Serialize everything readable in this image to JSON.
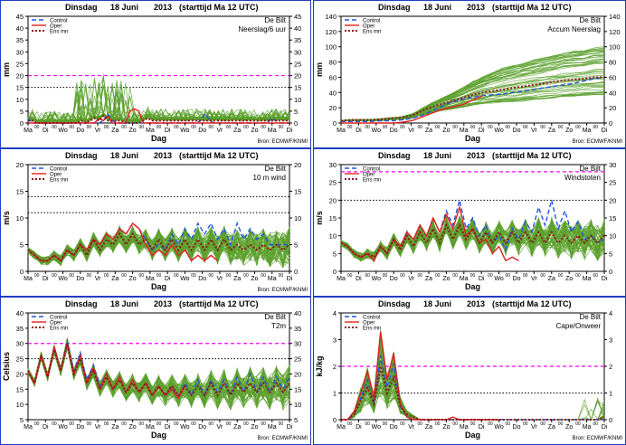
{
  "colors": {
    "panel_border": "#1f3fbf",
    "control": "#2255dd",
    "oper": "#e02020",
    "ensmean": "#8b1a1a",
    "members": "#5aa02c",
    "threshold": "#ff00ff",
    "dotted_grid": "#000000",
    "source": "#0000cc"
  },
  "shared": {
    "header_day": "Dinsdag",
    "header_date": "18 Juni",
    "header_year": "2013",
    "header_run": "(starttijd  Ma 12 UTC)",
    "station": "De Bilt",
    "xlabel": "Dag",
    "legend_control": "Control",
    "legend_oper": "Oper",
    "legend_ensmean": "Ens mn",
    "source": "Bron: ECMWF/KNMI",
    "hour_marks": [
      "00",
      "00",
      "00",
      "00",
      "00",
      "00",
      "00",
      "00",
      "00",
      "00",
      "00",
      "00",
      "00",
      "00",
      "00"
    ],
    "day_labels": [
      "Ma",
      "Di",
      "Wo",
      "Do",
      "Vr",
      "Za",
      "Zo",
      "Ma",
      "Di",
      "Wo",
      "Do",
      "Vr",
      "Za",
      "Zo",
      "Ma",
      "Di"
    ]
  },
  "chart_data": [
    {
      "type": "line",
      "ylabel": "mm",
      "variable": "Neerslag/6 uur",
      "ylim": [
        0,
        45
      ],
      "yticks": [
        0,
        5,
        10,
        15,
        20,
        25,
        30,
        35,
        40,
        45
      ],
      "threshold": 20,
      "ref_line": 15,
      "legend": "left",
      "source_shown": true,
      "series": [
        {
          "name": "Control",
          "values": [
            2,
            0,
            0,
            0,
            0,
            0,
            0,
            0,
            0,
            0,
            0,
            0,
            0,
            0,
            0,
            0,
            0,
            1,
            4,
            1,
            0,
            0,
            0,
            0,
            0,
            0,
            0,
            0,
            0,
            0,
            0,
            0,
            0,
            0,
            0,
            0,
            0,
            0,
            0,
            1,
            4,
            1,
            0,
            0,
            0,
            0,
            0,
            0,
            0,
            0,
            0,
            0,
            0,
            0,
            0,
            2,
            1,
            0,
            0,
            0
          ]
        },
        {
          "name": "Oper",
          "values": [
            0,
            0,
            0,
            0,
            0,
            0,
            0,
            0,
            0,
            0,
            0,
            0,
            0,
            0,
            0,
            0,
            2,
            1,
            3,
            0,
            0,
            0,
            0,
            5,
            6,
            5,
            0,
            0,
            0,
            0,
            0,
            0,
            0,
            0,
            0,
            0,
            0,
            0,
            0,
            0,
            0,
            0,
            0,
            0,
            0,
            0,
            0,
            0,
            0,
            0,
            0,
            0,
            0,
            0,
            0,
            0,
            0,
            0,
            0,
            0
          ]
        },
        {
          "name": "Ens mn",
          "values": [
            1,
            1,
            0,
            0,
            0,
            0,
            0,
            0,
            0,
            0,
            0,
            0,
            1,
            0,
            1,
            2,
            1,
            3,
            1,
            1,
            1,
            1,
            0,
            0,
            0,
            0,
            1,
            2,
            1,
            1,
            1,
            1,
            1,
            1,
            1,
            1,
            1,
            1,
            1,
            1,
            1,
            1,
            1,
            1,
            1,
            1,
            1,
            1,
            1,
            1,
            1,
            1,
            1,
            1,
            1,
            1,
            1,
            1,
            1,
            1
          ]
        }
      ]
    },
    {
      "type": "line",
      "ylabel": "mm",
      "variable": "Accum Neerslag",
      "ylim": [
        0,
        140
      ],
      "yticks": [
        0,
        20,
        40,
        60,
        80,
        100,
        120,
        140
      ],
      "threshold": null,
      "ref_line": null,
      "legend": "left",
      "source_shown": true,
      "series": [
        {
          "name": "Control",
          "values": [
            2,
            2,
            2,
            2,
            3,
            3,
            4,
            6,
            10,
            16,
            22,
            28,
            31,
            34,
            36,
            37,
            38,
            40,
            42,
            44,
            46,
            48,
            50,
            52,
            55,
            58,
            60
          ]
        },
        {
          "name": "Oper",
          "values": [
            0,
            0,
            0,
            0,
            0,
            0,
            1,
            3,
            8,
            13,
            18,
            21,
            24,
            30,
            36
          ]
        },
        {
          "name": "Ens mn",
          "values": [
            3,
            4,
            4,
            4,
            5,
            6,
            7,
            10,
            16,
            21,
            25,
            29,
            33,
            37,
            40,
            42,
            44,
            46,
            48,
            50,
            52,
            54,
            56,
            57,
            58,
            60,
            60
          ]
        }
      ]
    },
    {
      "type": "line",
      "ylabel": "m/s",
      "variable": "10 m wind",
      "ylim": [
        0,
        20
      ],
      "yticks": [
        0,
        5,
        10,
        15,
        20
      ],
      "threshold": null,
      "ref_line": 11,
      "ref_line2": 14,
      "legend": "left",
      "source_shown": true,
      "series": [
        {
          "name": "Control",
          "values": [
            4,
            3,
            2,
            2,
            3,
            2,
            4,
            3,
            5,
            4,
            6,
            5,
            7,
            6,
            8,
            7,
            9,
            8,
            6,
            4,
            5,
            4,
            7,
            5,
            8,
            6,
            9,
            7,
            9,
            6,
            8,
            5,
            9,
            6,
            8,
            6,
            7,
            5,
            5,
            5,
            5
          ]
        },
        {
          "name": "Oper",
          "values": [
            4,
            3,
            2,
            2,
            3,
            2,
            4,
            3,
            5,
            4,
            6,
            5,
            7,
            6,
            8,
            7,
            9,
            8,
            5,
            3,
            4,
            3,
            5,
            3,
            4,
            2,
            3,
            2,
            3,
            2
          ]
        },
        {
          "name": "Ens mn",
          "values": [
            4,
            3,
            2,
            2,
            3,
            2,
            4,
            3,
            5,
            3,
            6,
            4,
            6,
            5,
            7,
            5,
            7,
            5,
            6,
            4,
            6,
            4,
            6,
            4,
            6,
            4,
            6,
            4,
            6,
            4,
            6,
            4,
            5,
            4,
            5,
            4,
            5,
            4,
            5,
            4,
            5
          ]
        }
      ]
    },
    {
      "type": "line",
      "ylabel": "m/s",
      "variable": "Windstoten",
      "ylim": [
        0,
        30
      ],
      "yticks": [
        0,
        5,
        10,
        15,
        20,
        25,
        30
      ],
      "threshold": 28,
      "ref_line": 20,
      "legend": "left",
      "source_shown": false,
      "series": [
        {
          "name": "Control",
          "values": [
            8,
            7,
            5,
            4,
            5,
            3,
            7,
            5,
            9,
            7,
            11,
            9,
            13,
            10,
            15,
            11,
            17,
            13,
            20,
            12,
            15,
            10,
            13,
            8,
            10,
            6,
            12,
            9,
            14,
            11,
            18,
            13,
            20,
            12,
            17,
            11,
            14,
            9,
            10,
            8,
            9
          ]
        },
        {
          "name": "Oper",
          "values": [
            8,
            7,
            5,
            4,
            5,
            3,
            7,
            5,
            9,
            7,
            11,
            9,
            13,
            10,
            15,
            11,
            16,
            12,
            18,
            10,
            12,
            8,
            9,
            5,
            7,
            3,
            4,
            3
          ]
        },
        {
          "name": "Ens mn",
          "values": [
            8,
            7,
            5,
            4,
            5,
            4,
            7,
            5,
            9,
            6,
            10,
            7,
            11,
            8,
            12,
            8,
            13,
            9,
            13,
            9,
            12,
            8,
            11,
            8,
            11,
            8,
            11,
            8,
            11,
            8,
            11,
            8,
            11,
            8,
            10,
            8,
            10,
            8,
            10,
            8,
            10
          ]
        }
      ]
    },
    {
      "type": "line",
      "ylabel": "Celsius",
      "variable": "T2m",
      "ylim": [
        5,
        40
      ],
      "yticks": [
        5,
        10,
        15,
        20,
        25,
        30,
        35,
        40
      ],
      "threshold": 30,
      "ref_line": 25,
      "legend": "left",
      "source_shown": true,
      "series": [
        {
          "name": "Control",
          "values": [
            21,
            17,
            26,
            19,
            29,
            21,
            31,
            21,
            27,
            18,
            23,
            16,
            20,
            15,
            19,
            14,
            18,
            14,
            17,
            13,
            16,
            13,
            16,
            12,
            17,
            13,
            18,
            13,
            18,
            14,
            18,
            13,
            19,
            14,
            20,
            14,
            19,
            14,
            19,
            15,
            19
          ]
        },
        {
          "name": "Oper",
          "values": [
            21,
            17,
            26,
            19,
            29,
            21,
            30,
            20,
            26,
            17,
            22,
            15,
            20,
            15,
            19,
            14,
            18,
            14,
            17,
            13,
            16,
            13,
            15,
            12,
            16
          ]
        },
        {
          "name": "Ens mn",
          "values": [
            21,
            17,
            26,
            19,
            28,
            21,
            30,
            20,
            25,
            17,
            21,
            15,
            19,
            15,
            18,
            14,
            17,
            14,
            17,
            13,
            16,
            13,
            16,
            13,
            16,
            13,
            16,
            13,
            17,
            13,
            17,
            13,
            17,
            14,
            17,
            14,
            17,
            14,
            17,
            14,
            17
          ]
        }
      ]
    },
    {
      "type": "line",
      "ylabel": "kJ/kg",
      "variable": "Cape/Onweer",
      "ylim": [
        0,
        4
      ],
      "yticks": [
        0,
        1,
        2,
        3,
        4
      ],
      "threshold": 2,
      "ref_line": 1,
      "legend": "left",
      "source_shown": true,
      "series": [
        {
          "name": "Control",
          "values": [
            0,
            0,
            0.2,
            0.8,
            1.5,
            0.6,
            2.4,
            1.2,
            2.1,
            0.5,
            0.1,
            0,
            0,
            0,
            0,
            0,
            0,
            0,
            0,
            0,
            0,
            0,
            0,
            0,
            0,
            0,
            0,
            0,
            0,
            0,
            0,
            0,
            0,
            0,
            0,
            0,
            0,
            0,
            0,
            0,
            0
          ]
        },
        {
          "name": "Oper",
          "values": [
            0,
            0,
            0.3,
            1.0,
            1.8,
            0.8,
            3.3,
            1.5,
            2.5,
            0.6,
            0.1,
            0,
            0,
            0,
            0,
            0,
            0,
            0.1,
            0,
            0,
            0,
            0,
            0,
            0,
            0
          ]
        },
        {
          "name": "Ens mn",
          "values": [
            0,
            0,
            0.2,
            0.7,
            1.2,
            0.6,
            2.0,
            1.0,
            1.6,
            0.5,
            0.2,
            0.1,
            0,
            0,
            0,
            0,
            0,
            0,
            0,
            0,
            0,
            0,
            0,
            0,
            0,
            0,
            0,
            0,
            0,
            0,
            0,
            0,
            0,
            0,
            0,
            0,
            0,
            0,
            0,
            0,
            0.1
          ]
        }
      ]
    }
  ]
}
